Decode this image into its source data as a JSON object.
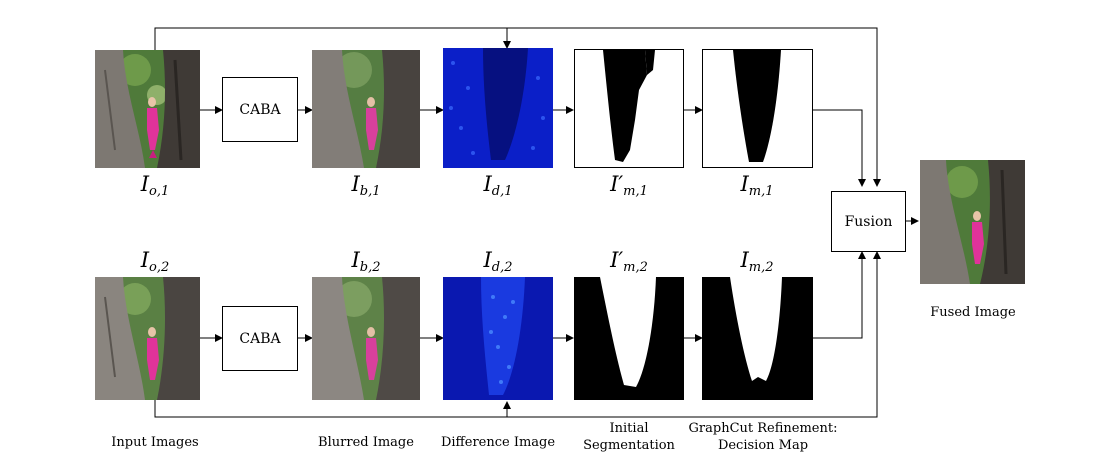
{
  "boxes": {
    "caba_top": "CABA",
    "caba_bottom": "CABA",
    "fusion": "Fusion"
  },
  "symbols": {
    "io1": {
      "base": "I",
      "sub": "o,1",
      "prime": ""
    },
    "ib1": {
      "base": "I",
      "sub": "b,1",
      "prime": ""
    },
    "id1": {
      "base": "I",
      "sub": "d,1",
      "prime": ""
    },
    "im1p": {
      "base": "I",
      "sub": "m,1",
      "prime": "′"
    },
    "im1": {
      "base": "I",
      "sub": "m,1",
      "prime": ""
    },
    "io2": {
      "base": "I",
      "sub": "o,2",
      "prime": ""
    },
    "ib2": {
      "base": "I",
      "sub": "b,2",
      "prime": ""
    },
    "id2": {
      "base": "I",
      "sub": "d,2",
      "prime": ""
    },
    "im2p": {
      "base": "I",
      "sub": "m,2",
      "prime": "′"
    },
    "im2": {
      "base": "I",
      "sub": "m,2",
      "prime": ""
    }
  },
  "captions": {
    "input": "Input Images",
    "blurred": "Blurred Image",
    "difference": "Difference Image",
    "initial_line1": "Initial",
    "initial_line2": "Segmentation",
    "graphcut_line1": "GraphCut Refinement:",
    "graphcut_line2": "Decision Map",
    "fused": "Fused Image"
  },
  "colors": {
    "difference_map": "#0b1fc8",
    "child_pink": "#e0339a",
    "tree_bark": "#6b6660",
    "foliage": "#4f7a3a"
  }
}
